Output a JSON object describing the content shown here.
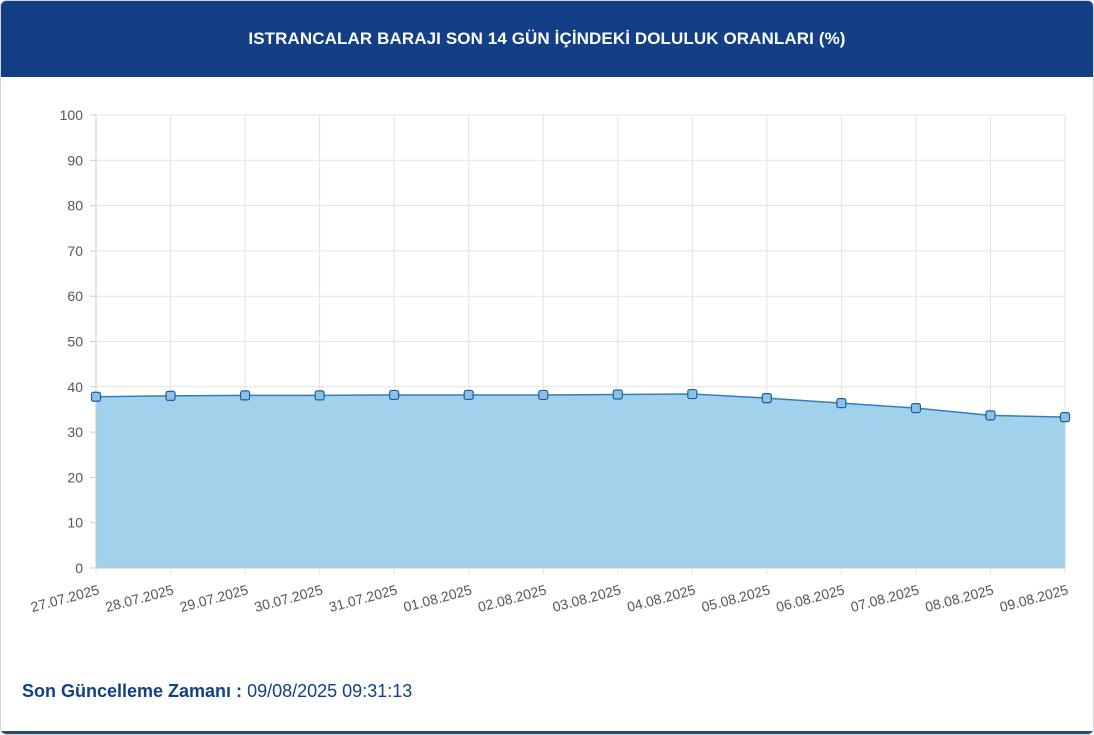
{
  "header": {
    "title": "ISTRANCALAR BARAJI SON 14 GÜN İÇİNDEKİ DOLULUK ORANLARI (%)"
  },
  "footer": {
    "label": "Son Güncelleme Zamanı :",
    "value": "09/08/2025 09:31:13"
  },
  "colors": {
    "header_bg": "#123f86",
    "line": "#2f7fbf",
    "area": "#9dcfea",
    "marker": "#8cc1e6",
    "grid": "#e3e3e3"
  },
  "chart_data": {
    "type": "area",
    "title": "ISTRANCALAR BARAJI SON 14 GÜN İÇİNDEKİ DOLULUK ORANLARI (%)",
    "xlabel": "",
    "ylabel": "",
    "ylim": [
      0,
      100
    ],
    "yticks": [
      0,
      10,
      20,
      30,
      40,
      50,
      60,
      70,
      80,
      90,
      100
    ],
    "grid": true,
    "legend": "none",
    "categories": [
      "27.07.2025",
      "28.07.2025",
      "29.07.2025",
      "30.07.2025",
      "31.07.2025",
      "01.08.2025",
      "02.08.2025",
      "03.08.2025",
      "04.08.2025",
      "05.08.2025",
      "06.08.2025",
      "07.08.2025",
      "08.08.2025",
      "09.08.2025"
    ],
    "series": [
      {
        "values": [
          37.8,
          38.0,
          38.1,
          38.1,
          38.2,
          38.2,
          38.2,
          38.3,
          38.4,
          37.5,
          36.4,
          35.3,
          33.7,
          33.3
        ]
      }
    ]
  }
}
